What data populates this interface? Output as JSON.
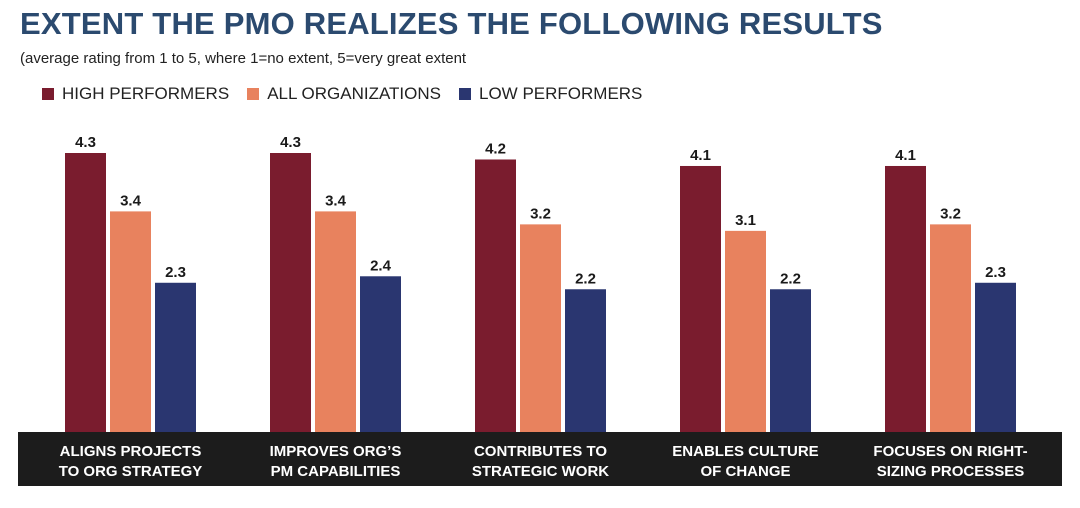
{
  "chart_data": {
    "type": "bar",
    "title": "EXTENT THE PMO REALIZES THE FOLLOWING RESULTS",
    "subtitle": "(average rating from 1 to 5, where 1=no extent, 5=very great extent",
    "categories": [
      [
        "ALIGNS PROJECTS",
        "TO ORG STRATEGY"
      ],
      [
        "IMPROVES ORG’S",
        "PM CAPABILITIES"
      ],
      [
        "CONTRIBUTES TO",
        "STRATEGIC WORK"
      ],
      [
        "ENABLES CULTURE",
        "OF CHANGE"
      ],
      [
        "FOCUSES ON RIGHT-",
        "SIZING PROCESSES"
      ]
    ],
    "series": [
      {
        "name": "HIGH PERFORMERS",
        "color": "#7a1c2e",
        "values": [
          4.3,
          4.3,
          4.2,
          4.1,
          4.1
        ]
      },
      {
        "name": "ALL ORGANIZATIONS",
        "color": "#e8825e",
        "values": [
          3.4,
          3.4,
          3.2,
          3.1,
          3.2
        ]
      },
      {
        "name": "LOW PERFORMERS",
        "color": "#2a3670",
        "values": [
          2.3,
          2.4,
          2.2,
          2.2,
          2.3
        ]
      }
    ],
    "ylim": [
      0,
      4.3
    ],
    "legend_position": "top-left",
    "grid": false,
    "category_band_color": "#1c1c1c"
  }
}
